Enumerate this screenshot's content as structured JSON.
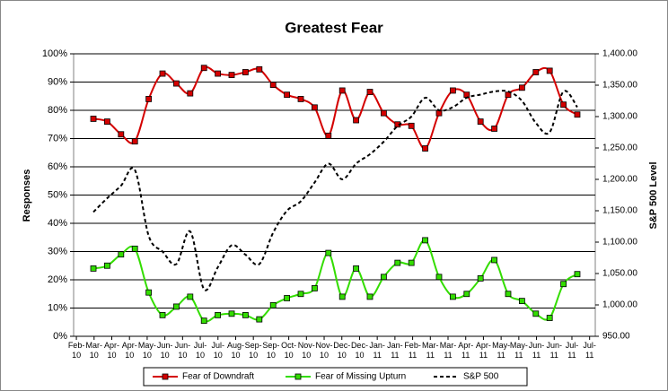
{
  "chart_data": {
    "type": "line",
    "title": "Greatest Fear",
    "ylabel": "Responses",
    "y2label": "S&P 500 Level",
    "x": [
      0,
      1,
      2,
      3,
      4,
      5,
      6,
      7,
      8,
      9,
      10,
      11,
      12,
      13,
      14,
      15,
      16,
      17,
      18,
      19,
      20,
      21,
      22,
      23,
      24,
      25,
      26,
      27,
      28,
      29,
      30,
      31,
      32,
      33,
      34,
      35
    ],
    "xlim": [
      -1.43,
      36.3
    ],
    "xticks": [
      {
        "value": -1.23,
        "label": "Feb-10"
      },
      {
        "value": 0.05,
        "label": "Mar-10"
      },
      {
        "value": 1.33,
        "label": "Apr-10"
      },
      {
        "value": 2.61,
        "label": "Apr-10"
      },
      {
        "value": 3.89,
        "label": "May-10"
      },
      {
        "value": 5.17,
        "label": "Jun-10"
      },
      {
        "value": 6.45,
        "label": "Jun-10"
      },
      {
        "value": 7.73,
        "label": "Jul-10"
      },
      {
        "value": 9.01,
        "label": "Jul-10"
      },
      {
        "value": 10.29,
        "label": "Aug-10"
      },
      {
        "value": 11.57,
        "label": "Sep-10"
      },
      {
        "value": 12.85,
        "label": "Sep-10"
      },
      {
        "value": 14.13,
        "label": "Oct-10"
      },
      {
        "value": 15.41,
        "label": "Nov-10"
      },
      {
        "value": 16.69,
        "label": "Nov-10"
      },
      {
        "value": 17.97,
        "label": "Dec-10"
      },
      {
        "value": 19.25,
        "label": "Dec-10"
      },
      {
        "value": 20.53,
        "label": "Jan-11"
      },
      {
        "value": 21.81,
        "label": "Jan-11"
      },
      {
        "value": 23.09,
        "label": "Feb-11"
      },
      {
        "value": 24.37,
        "label": "Mar-11"
      },
      {
        "value": 25.65,
        "label": "Mar-11"
      },
      {
        "value": 26.93,
        "label": "Apr-11"
      },
      {
        "value": 28.21,
        "label": "Apr-11"
      },
      {
        "value": 29.49,
        "label": "May-11"
      },
      {
        "value": 30.77,
        "label": "May-11"
      },
      {
        "value": 32.05,
        "label": "Jun-11"
      },
      {
        "value": 33.33,
        "label": "Jun-11"
      },
      {
        "value": 34.61,
        "label": "Jul-11"
      },
      {
        "value": 35.89,
        "label": "Jul-11"
      }
    ],
    "ylim": [
      0,
      100
    ],
    "yticks": [
      {
        "value": 0,
        "label": "0%"
      },
      {
        "value": 10,
        "label": "10%"
      },
      {
        "value": 20,
        "label": "20%"
      },
      {
        "value": 30,
        "label": "30%"
      },
      {
        "value": 40,
        "label": "40%"
      },
      {
        "value": 50,
        "label": "50%"
      },
      {
        "value": 60,
        "label": "60%"
      },
      {
        "value": 70,
        "label": "70%"
      },
      {
        "value": 80,
        "label": "80%"
      },
      {
        "value": 90,
        "label": "90%"
      },
      {
        "value": 100,
        "label": "100%"
      }
    ],
    "y2lim": [
      950,
      1400
    ],
    "y2ticks": [
      {
        "value": 950,
        "label": "950.00"
      },
      {
        "value": 1000,
        "label": "1,000.00"
      },
      {
        "value": 1050,
        "label": "1,050.00"
      },
      {
        "value": 1100,
        "label": "1,100.00"
      },
      {
        "value": 1150,
        "label": "1,150.00"
      },
      {
        "value": 1200,
        "label": "1,200.00"
      },
      {
        "value": 1250,
        "label": "1,250.00"
      },
      {
        "value": 1300,
        "label": "1,300.00"
      },
      {
        "value": 1350,
        "label": "1,350.00"
      },
      {
        "value": 1400,
        "label": "1,400.00"
      }
    ],
    "grid": true,
    "series": [
      {
        "name": "Fear of Downdraft",
        "color": "#d40000",
        "marker_fill": "#d40000",
        "values": [
          77,
          76,
          71.5,
          69,
          84,
          93,
          89.5,
          86,
          95,
          93,
          92.5,
          93.5,
          94.5,
          89,
          85.5,
          84,
          81,
          71,
          87,
          76.5,
          86.5,
          79,
          75,
          74.5,
          66.5,
          79,
          87,
          85.5,
          76,
          73.5,
          85.5,
          88,
          93.5,
          94,
          82,
          78.5
        ]
      },
      {
        "name": "Fear of Missing Upturn",
        "color": "#33dd00",
        "marker_fill": "#33dd00",
        "values": [
          24,
          25,
          29,
          31,
          15.5,
          7.5,
          10.5,
          14,
          5.5,
          7.5,
          8,
          7.5,
          6,
          11,
          13.5,
          15,
          17,
          29.5,
          14,
          24,
          14,
          21,
          26,
          26,
          34,
          21,
          14,
          15,
          20.5,
          27,
          15,
          12.5,
          8,
          6.5,
          18.5,
          22
        ]
      },
      {
        "name": "S&P 500",
        "color": "#000000",
        "axis": "y2",
        "dashed": true,
        "values": [
          1148,
          1170,
          1190,
          1215,
          1110,
          1085,
          1065,
          1117,
          1025,
          1060,
          1095,
          1080,
          1065,
          1115,
          1150,
          1165,
          1195,
          1225,
          1200,
          1225,
          1240,
          1260,
          1285,
          1300,
          1330,
          1310,
          1315,
          1330,
          1335,
          1340,
          1340,
          1325,
          1290,
          1275,
          1340,
          1315
        ]
      }
    ]
  }
}
